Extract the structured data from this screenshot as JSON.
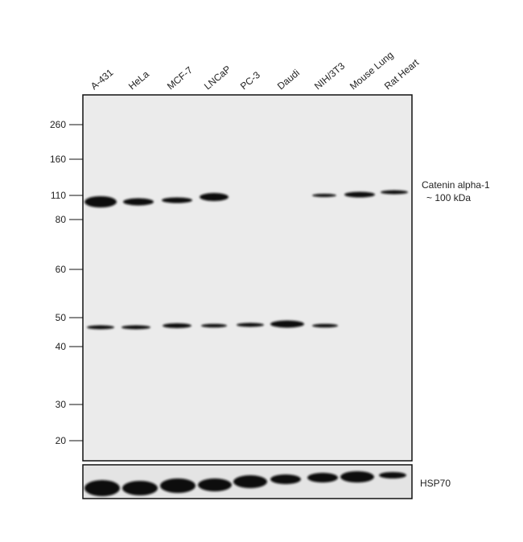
{
  "lanes": [
    "A-431",
    "HeLa",
    "MCF-7",
    "LNCaP",
    "PC-3",
    "Daudi",
    "NIH/3T3",
    "Mouse Lung",
    "Rat Heart"
  ],
  "markers": [
    260,
    160,
    110,
    80,
    60,
    50,
    40,
    30,
    20
  ],
  "target": {
    "name": "Catenin alpha-1",
    "size": "~ 100 kDa"
  },
  "loading_control": "HSP70"
}
